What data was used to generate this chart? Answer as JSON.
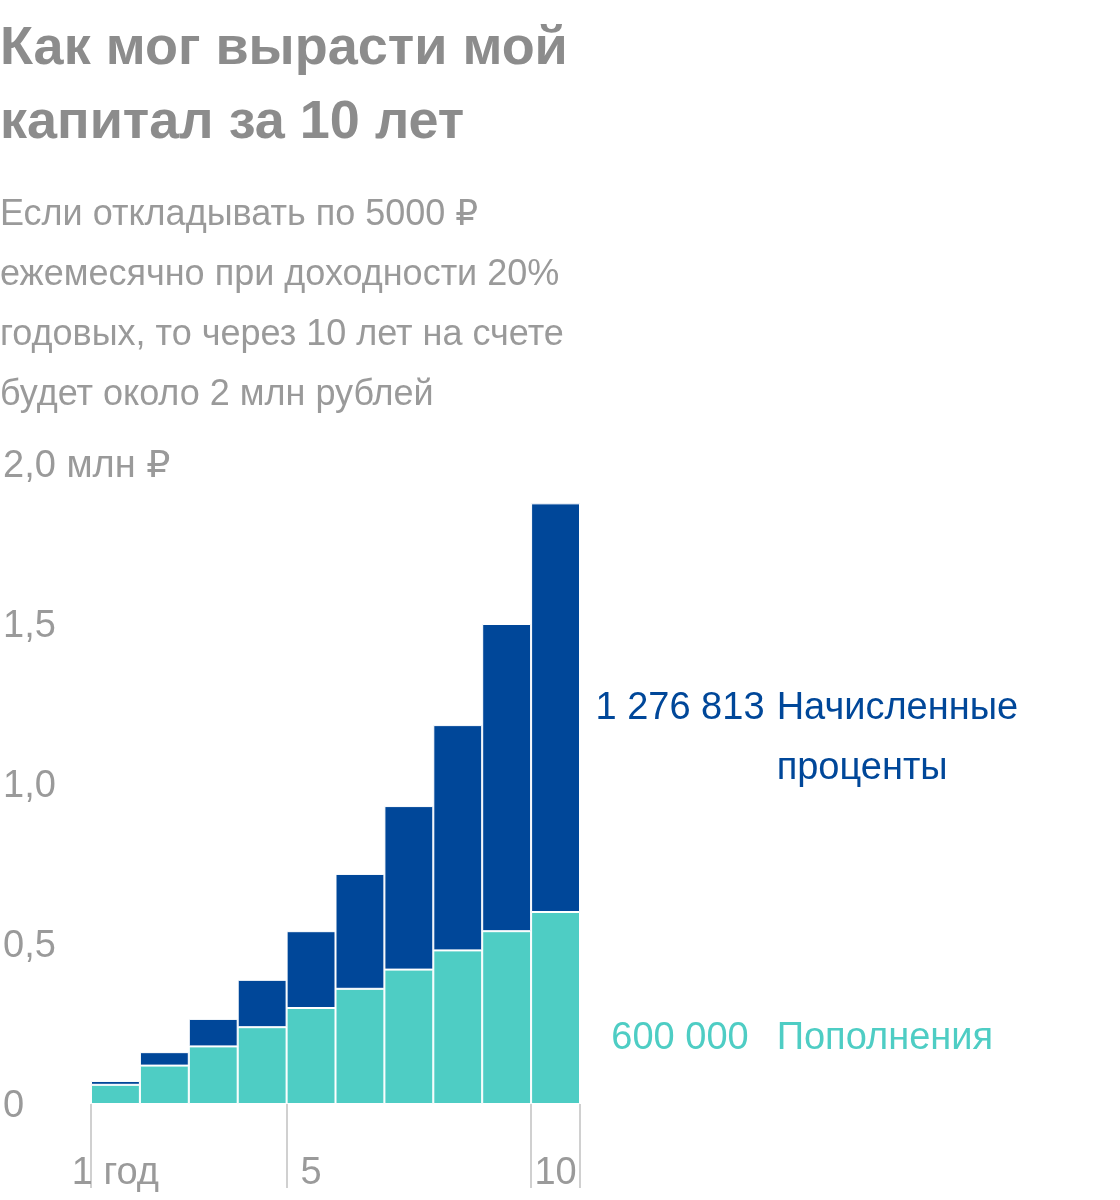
{
  "chart_data": {
    "type": "bar",
    "title": "Как мог вырасти мой капитал за 10 лет",
    "subtitle": "Если откладывать по 5000 ₽ ежемесячно при доходности 20% годовых, то через 10 лет на счете будет около 2 млн рублей",
    "categories": [
      "1 год",
      null,
      null,
      null,
      "5",
      null,
      null,
      null,
      null,
      "10"
    ],
    "stacked": true,
    "series": [
      {
        "name": "Пополнения",
        "color": "#4ecdc4",
        "values": [
          0.06,
          0.12,
          0.18,
          0.24,
          0.3,
          0.36,
          0.42,
          0.48,
          0.54,
          0.6
        ]
      },
      {
        "name": "Начисленные проценты",
        "color": "#004799",
        "values": [
          0.012,
          0.042,
          0.086,
          0.148,
          0.24,
          0.359,
          0.511,
          0.704,
          0.96,
          1.277
        ]
      }
    ],
    "annotations": [
      "600 000",
      "1 276 813"
    ],
    "ylim": [
      0,
      2
    ],
    "yticks": [
      0,
      {
        "value": 0.5,
        "label": "0,5"
      },
      {
        "value": 1,
        "label": "1,0"
      },
      {
        "value": 1.5,
        "label": "1,5"
      },
      {
        "value": 2,
        "label": "2,0 млн ₽"
      }
    ],
    "grid": false,
    "legend": false
  }
}
